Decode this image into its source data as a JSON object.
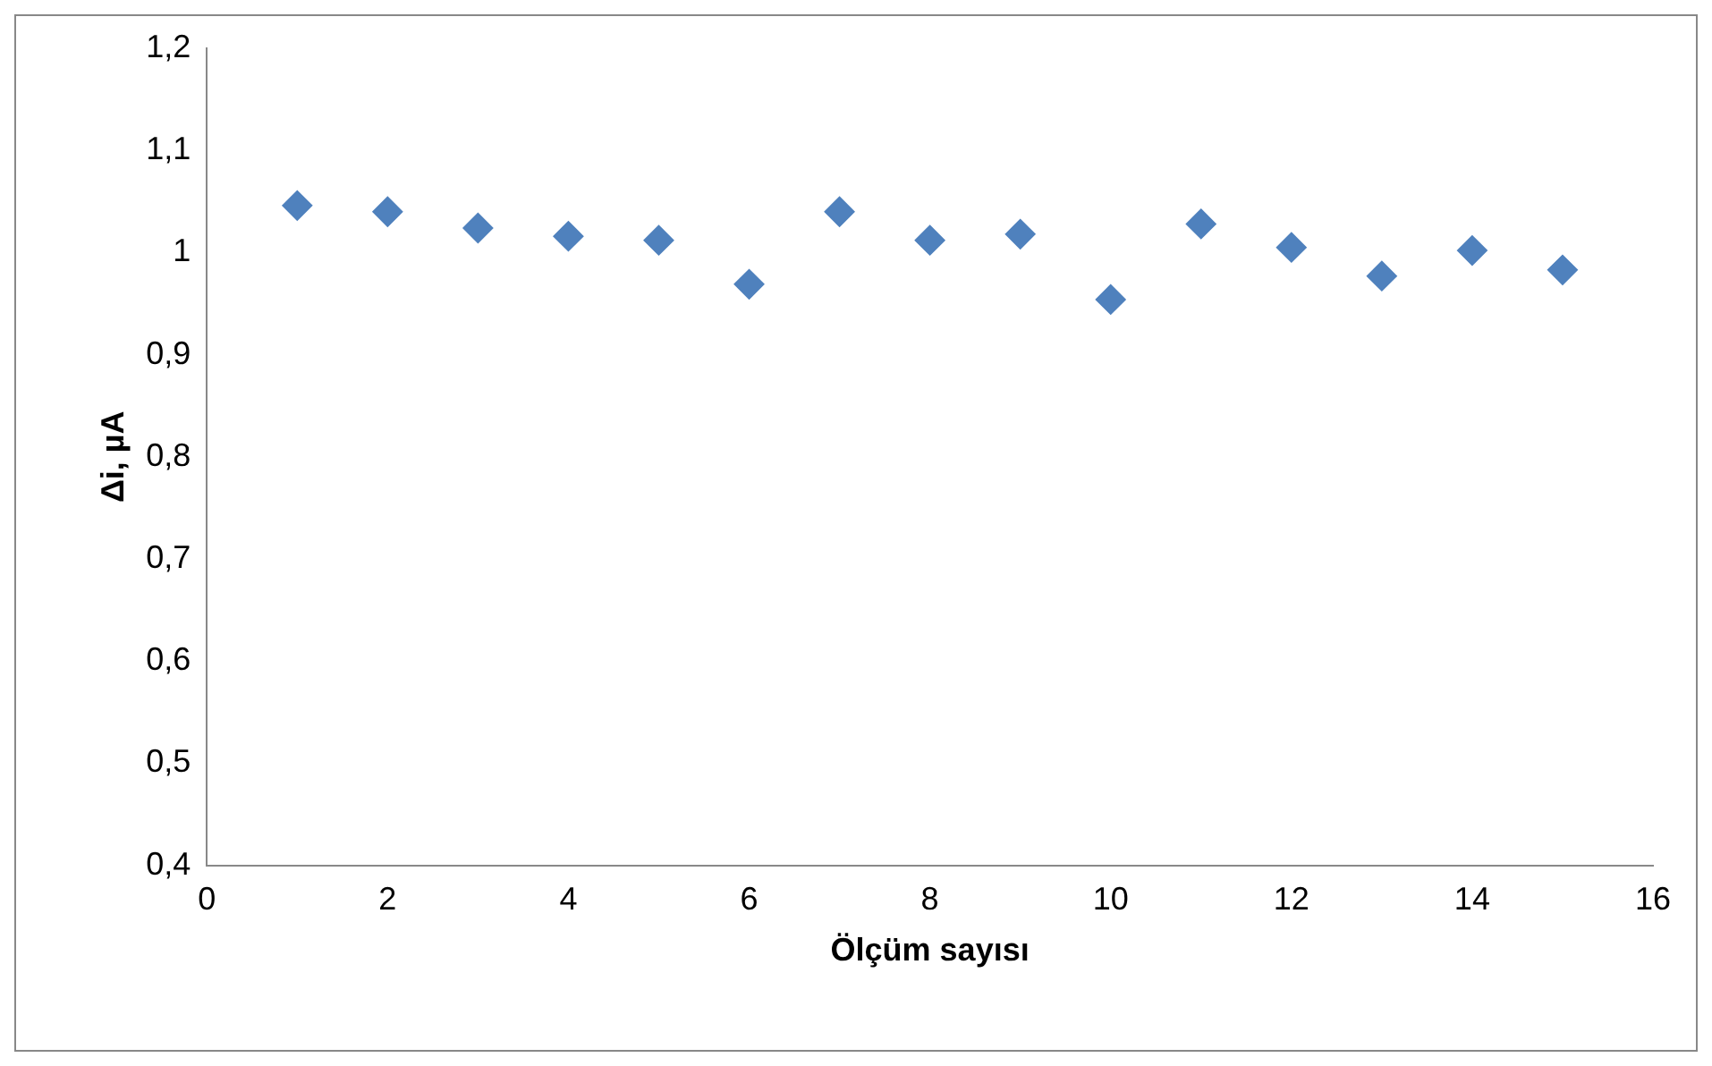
{
  "chart_data": {
    "type": "scatter",
    "xlabel": "Ölçüm sayısı",
    "ylabel": "Δi, µA",
    "x": [
      1,
      2,
      3,
      4,
      5,
      6,
      7,
      8,
      9,
      10,
      11,
      12,
      13,
      14,
      15
    ],
    "series": [
      {
        "color": "#4f81bd",
        "values": [
          1.046,
          1.04,
          1.024,
          1.016,
          1.012,
          0.969,
          1.04,
          1.012,
          1.018,
          0.954,
          1.028,
          1.005,
          0.977,
          1.002,
          0.983
        ]
      }
    ],
    "xlim": [
      0,
      16
    ],
    "xticks": [
      0,
      2,
      4,
      6,
      8,
      10,
      12,
      14,
      16
    ],
    "ylim": [
      0.4,
      1.2
    ],
    "yticks": [
      {
        "value": 0.4,
        "label": "0,4"
      },
      {
        "value": 0.5,
        "label": "0,5"
      },
      {
        "value": 0.6,
        "label": "0,6"
      },
      {
        "value": 0.7,
        "label": "0,7"
      },
      {
        "value": 0.8,
        "label": "0,8"
      },
      {
        "value": 0.9,
        "label": "0,9"
      },
      {
        "value": 1,
        "label": "1"
      },
      {
        "value": 1.1,
        "label": "1,1"
      },
      {
        "value": 1.2,
        "label": "1,2"
      }
    ],
    "marker": "diamond",
    "grid": false,
    "legend": false
  }
}
